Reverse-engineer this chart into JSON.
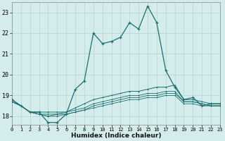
{
  "xlabel": "Humidex (Indice chaleur)",
  "background_color": "#d4edec",
  "grid_color": "#b8d8d6",
  "line_color": "#1a6e6e",
  "x_ticks": [
    0,
    1,
    2,
    3,
    4,
    5,
    6,
    7,
    8,
    9,
    10,
    11,
    12,
    13,
    14,
    15,
    16,
    17,
    18,
    19,
    20,
    21,
    22,
    23
  ],
  "y_ticks": [
    18,
    19,
    20,
    21,
    22,
    23
  ],
  "xlim": [
    0,
    23
  ],
  "ylim": [
    17.6,
    23.5
  ],
  "series": [
    [
      18.8,
      18.5,
      18.2,
      18.2,
      17.7,
      17.7,
      18.1,
      19.3,
      19.7,
      22.0,
      21.5,
      21.6,
      21.8,
      22.5,
      22.2,
      23.3,
      22.5,
      20.2,
      19.4,
      18.8,
      18.9,
      18.5,
      18.6,
      18.6
    ],
    [
      18.8,
      18.5,
      18.2,
      18.2,
      18.2,
      18.2,
      18.2,
      18.4,
      18.6,
      18.8,
      18.9,
      19.0,
      19.1,
      19.2,
      19.2,
      19.3,
      19.4,
      19.4,
      19.5,
      18.8,
      18.8,
      18.7,
      18.6,
      18.6
    ],
    [
      18.7,
      18.5,
      18.2,
      18.1,
      18.1,
      18.1,
      18.2,
      18.3,
      18.4,
      18.6,
      18.7,
      18.8,
      18.9,
      19.0,
      19.0,
      19.1,
      19.1,
      19.2,
      19.2,
      18.7,
      18.7,
      18.6,
      18.5,
      18.5
    ],
    [
      18.7,
      18.5,
      18.2,
      18.1,
      18.0,
      18.1,
      18.1,
      18.2,
      18.3,
      18.5,
      18.6,
      18.7,
      18.8,
      18.9,
      18.9,
      19.0,
      19.0,
      19.1,
      19.1,
      18.7,
      18.7,
      18.6,
      18.5,
      18.5
    ],
    [
      18.7,
      18.5,
      18.2,
      18.1,
      18.0,
      18.0,
      18.1,
      18.2,
      18.3,
      18.4,
      18.5,
      18.6,
      18.7,
      18.8,
      18.8,
      18.9,
      18.9,
      19.0,
      19.0,
      18.6,
      18.6,
      18.5,
      18.5,
      18.5
    ]
  ]
}
